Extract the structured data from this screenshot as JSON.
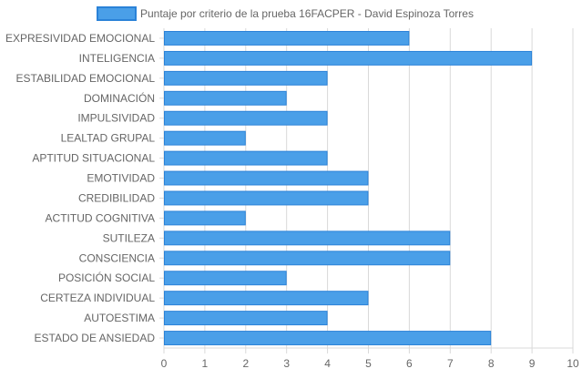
{
  "chart_data": {
    "type": "bar",
    "orientation": "horizontal",
    "categories": [
      "EXPRESIVIDAD EMOCIONAL",
      "INTELIGENCIA",
      "ESTABILIDAD EMOCIONAL",
      "DOMINACIÓN",
      "IMPULSIVIDAD",
      "LEALTAD GRUPAL",
      "APTITUD SITUACIONAL",
      "EMOTIVIDAD",
      "CREDIBILIDAD",
      "ACTITUD COGNITIVA",
      "SUTILEZA",
      "CONSCIENCIA",
      "POSICIÓN SOCIAL",
      "CERTEZA INDIVIDUAL",
      "AUTOESTIMA",
      "ESTADO DE ANSIEDAD"
    ],
    "series": [
      {
        "name": "Puntaje por criterio de la prueba 16FACPER - David Espinoza Torres",
        "values": [
          6,
          9,
          4,
          3,
          4,
          2,
          4,
          5,
          5,
          2,
          7,
          7,
          3,
          5,
          4,
          8
        ]
      }
    ],
    "xlim": [
      0,
      10
    ],
    "x_ticks": [
      "0",
      "1",
      "2",
      "3",
      "4",
      "5",
      "6",
      "7",
      "8",
      "9",
      "10"
    ],
    "grid": true,
    "legend_position": "top",
    "colors": {
      "bar_fill": "#4a9fe8",
      "bar_border": "#2a82d8",
      "grid": "#d9d9d9",
      "axis_text": "#666666"
    }
  }
}
